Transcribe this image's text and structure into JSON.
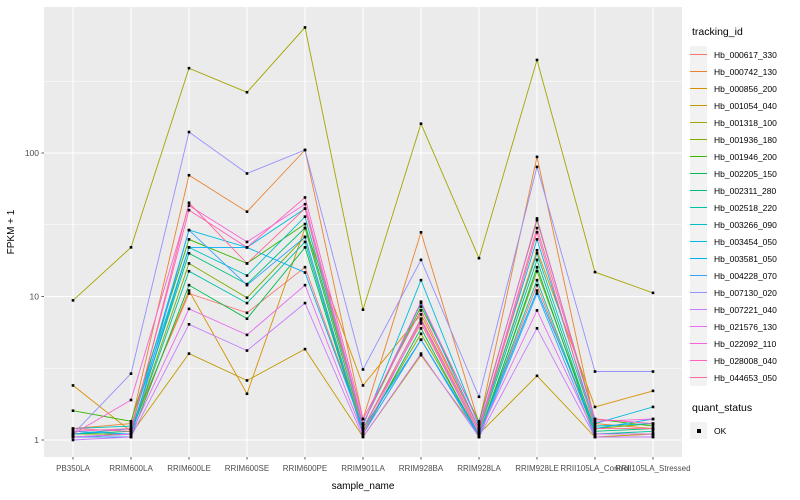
{
  "chart_data": {
    "type": "line",
    "title": "",
    "xlabel": "sample_name",
    "ylabel": "FPKM + 1",
    "y_scale": "log10",
    "y_tick_labels": [
      "1",
      "10",
      "100"
    ],
    "y_ticks": [
      1,
      10,
      100
    ],
    "y_minor_ticks": [
      3.162,
      31.62,
      316.2
    ],
    "ylim": [
      0.78,
      1000
    ],
    "legend_position": "right",
    "grid": true,
    "panel_bg": "#EBEBEB",
    "grid_color": "#FFFFFF",
    "tick_label_color": "#4D4D4D",
    "point_color": "#000000",
    "categories": [
      "PB350LA",
      "RRIM600LA",
      "RRIM600LE",
      "RRIM600SE",
      "RRIM600PE",
      "RRIM901LA",
      "RRIM928BA",
      "RRIM928LA",
      "RRIM928LE",
      "RRII105LA_Control",
      "RRII105LA_Stressed"
    ],
    "series": [
      {
        "name": "Hb_000617_330",
        "color": "#F8766D",
        "values": [
          1.1,
          1.2,
          10.5,
          7.7,
          16,
          1.2,
          6.5,
          1.1,
          12,
          1.1,
          1.1
        ]
      },
      {
        "name": "Hb_000742_130",
        "color": "#EA8331",
        "values": [
          1.2,
          1.3,
          70,
          39,
          105,
          1.4,
          28,
          1.3,
          94,
          1.3,
          1.2
        ]
      },
      {
        "name": "Hb_000856_200",
        "color": "#D89000",
        "values": [
          2.4,
          1.15,
          11,
          2.1,
          30,
          2.4,
          7.5,
          1.2,
          21,
          1.7,
          2.2
        ]
      },
      {
        "name": "Hb_001054_040",
        "color": "#C09B00",
        "values": [
          1.05,
          1.1,
          4.0,
          2.6,
          4.3,
          1.05,
          3.9,
          1.1,
          2.8,
          1.05,
          1.1
        ]
      },
      {
        "name": "Hb_001318_100",
        "color": "#A3A500",
        "values": [
          9.4,
          22,
          390,
          265,
          750,
          8.1,
          160,
          18.5,
          445,
          14.8,
          10.6
        ]
      },
      {
        "name": "Hb_001936_180",
        "color": "#7CAE00",
        "values": [
          1.1,
          1.1,
          17,
          9.8,
          26,
          1.15,
          5.5,
          1.1,
          15,
          1.2,
          1.3
        ]
      },
      {
        "name": "Hb_001946_200",
        "color": "#39B600",
        "values": [
          1.6,
          1.35,
          25,
          17,
          32,
          1.3,
          8.5,
          1.35,
          34,
          1.4,
          1.25
        ]
      },
      {
        "name": "Hb_002205_150",
        "color": "#00BB4E",
        "values": [
          1.05,
          1.05,
          12,
          7.0,
          22,
          1.1,
          6.0,
          1.05,
          16,
          1.1,
          1.1
        ]
      },
      {
        "name": "Hb_002311_280",
        "color": "#00BF7D",
        "values": [
          1.1,
          1.15,
          20,
          12.2,
          30,
          1.2,
          7.0,
          1.15,
          18,
          1.15,
          1.2
        ]
      },
      {
        "name": "Hb_002518_220",
        "color": "#00C1A3",
        "values": [
          1.05,
          1.1,
          15,
          9.0,
          24,
          1.1,
          5.0,
          1.1,
          13,
          1.1,
          1.15
        ]
      },
      {
        "name": "Hb_003266_090",
        "color": "#00BFC4",
        "values": [
          1.2,
          1.25,
          22,
          14,
          36,
          1.3,
          9.0,
          1.2,
          20,
          1.25,
          1.3
        ]
      },
      {
        "name": "Hb_003454_050",
        "color": "#00BAE0",
        "values": [
          1.1,
          1.2,
          29,
          22,
          41,
          1.25,
          13,
          1.25,
          25,
          1.3,
          1.7
        ]
      },
      {
        "name": "Hb_003581_050",
        "color": "#00B0F6",
        "values": [
          1.15,
          1.1,
          22,
          22,
          14.7,
          1.2,
          5.0,
          1.1,
          11,
          1.2,
          1.4
        ]
      },
      {
        "name": "Hb_004228_070",
        "color": "#35A2FF",
        "values": [
          1.05,
          1.05,
          29,
          12,
          26,
          1.1,
          5.0,
          1.05,
          10.5,
          1.05,
          1.05
        ]
      },
      {
        "name": "Hb_007130_020",
        "color": "#9590FF",
        "values": [
          1.1,
          2.9,
          140,
          72,
          105,
          3.1,
          18,
          2.0,
          80,
          3.0,
          3.0
        ]
      },
      {
        "name": "Hb_007221_040",
        "color": "#C77CFF",
        "values": [
          1.0,
          1.05,
          6.4,
          4.2,
          9.0,
          1.05,
          4.0,
          1.05,
          6.0,
          1.05,
          1.05
        ]
      },
      {
        "name": "Hb_021576_130",
        "color": "#E76BF3",
        "values": [
          1.05,
          1.1,
          8.2,
          5.4,
          12,
          1.1,
          6.8,
          1.1,
          8.0,
          1.1,
          1.1
        ]
      },
      {
        "name": "Hb_022092_110",
        "color": "#FA62DB",
        "values": [
          1.1,
          1.9,
          43,
          24,
          44,
          1.3,
          9.2,
          1.3,
          35,
          1.35,
          1.4
        ]
      },
      {
        "name": "Hb_028008_040",
        "color": "#FF62BC",
        "values": [
          1.15,
          1.2,
          40,
          22,
          49,
          1.4,
          8.0,
          1.2,
          30,
          1.4,
          1.3
        ]
      },
      {
        "name": "Hb_044653_050",
        "color": "#FF6A98",
        "values": [
          1.2,
          1.15,
          45,
          17,
          41,
          1.2,
          7.0,
          1.15,
          28,
          1.2,
          1.2
        ]
      }
    ],
    "legend": {
      "tracking_title": "tracking_id",
      "quant_title": "quant_status",
      "quant_items": [
        {
          "label": "OK",
          "marker": "black-square"
        }
      ]
    }
  }
}
